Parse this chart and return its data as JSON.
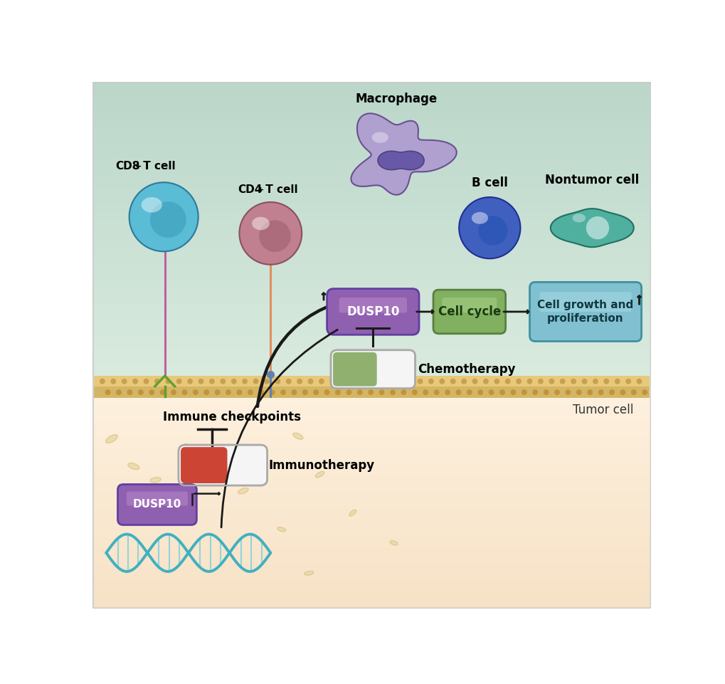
{
  "bg_top_color": "#b8ddd0",
  "bg_bottom_color": "#fdf3e3",
  "membrane_color1": "#e8c87a",
  "membrane_color2": "#d4b060",
  "labels": {
    "macrophage": "Macrophage",
    "bcell": "B cell",
    "nontumor": "Nontumor cell",
    "tumor_cell": "Tumor cell",
    "immune_checkpoints": "Immune checkpoints",
    "immunotherapy": "Immunotherapy",
    "chemotherapy": "Chemotherapy",
    "dusp10_main": "DUSP10",
    "dusp10_gene": "DUSP10",
    "cell_cycle": "Cell cycle",
    "cell_growth": "Cell growth and\nproliferation"
  },
  "colors": {
    "cd8_cell_fill": "#5bbcd6",
    "cd8_cell_outline": "#2a7a9a",
    "cd4_cell_fill": "#c08090",
    "cd4_cell_outline": "#8a5060",
    "macrophage_fill": "#b0a0d0",
    "macrophage_outline": "#6a5090",
    "macrophage_nuc": "#7060a0",
    "bcell_fill": "#4060c0",
    "bcell_outline": "#203090",
    "nontumor_fill": "#50b0a0",
    "nontumor_outline": "#207060",
    "dusp10_fill": "#9060b0",
    "dusp10_edge": "#6040a0",
    "cell_cycle_fill": "#80b060",
    "cell_cycle_edge": "#5a8040",
    "cell_growth_fill": "#80c0d0",
    "cell_growth_edge": "#4090a0",
    "immuno_pill_red": "#cc4433",
    "immuno_pill_white": "#f5f5f5",
    "chemo_pill_green": "#90b070",
    "chemo_pill_white": "#f5f5f5",
    "tcr_cd8_color": "#c060a0",
    "tcr_cd4_color": "#e09060",
    "receptor_green": "#60a030",
    "receptor_blue": "#6080b0",
    "dna_color": "#40b0c0",
    "dna_rung": "#70d0e0",
    "scatter_fill": "#e8d5a0",
    "scatter_edge": "#d4bc78",
    "arrow_color": "#1a1a1a"
  },
  "scatter_ovals": [
    [
      0.35,
      3.1,
      0.24,
      0.11,
      30
    ],
    [
      0.75,
      2.6,
      0.22,
      0.1,
      -20
    ],
    [
      1.15,
      2.35,
      0.2,
      0.09,
      10
    ],
    [
      0.65,
      1.75,
      0.17,
      0.08,
      45
    ],
    [
      1.75,
      2.95,
      0.18,
      0.08,
      -35
    ],
    [
      2.75,
      2.15,
      0.2,
      0.09,
      20
    ],
    [
      3.45,
      1.45,
      0.16,
      0.07,
      -15
    ],
    [
      4.15,
      2.45,
      0.18,
      0.08,
      30
    ],
    [
      3.75,
      3.15,
      0.2,
      0.09,
      -25
    ],
    [
      4.75,
      1.75,
      0.16,
      0.07,
      40
    ],
    [
      3.95,
      0.65,
      0.17,
      0.07,
      10
    ],
    [
      5.5,
      1.2,
      0.15,
      0.07,
      -20
    ]
  ]
}
